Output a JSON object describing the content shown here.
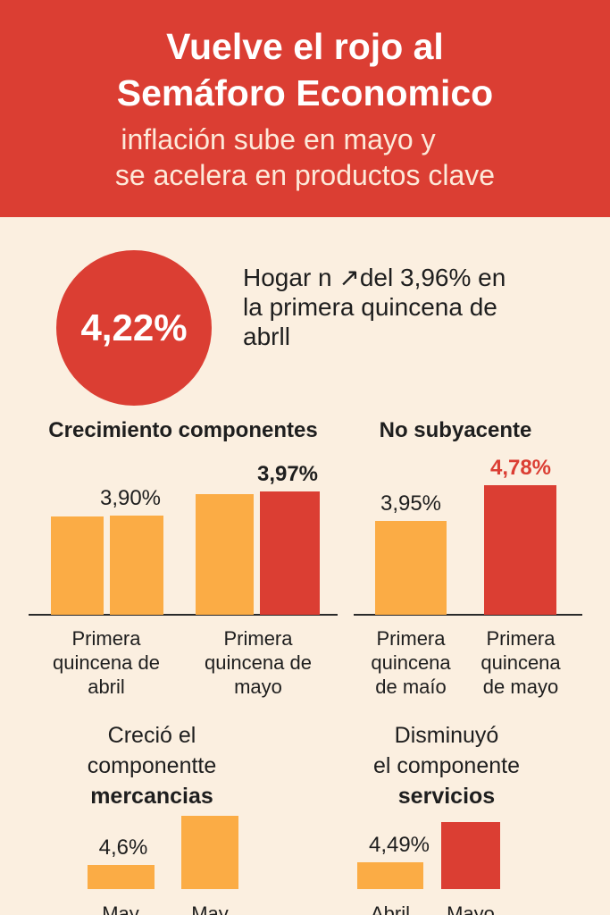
{
  "header": {
    "title_line1": "Vuelve el rojo al",
    "title_line2": "Semáforo Economico",
    "subtitle_line1": "inflación sube en mayo y",
    "subtitle_line2": "se acelera en productos clave"
  },
  "highlight": {
    "value": "4,22%",
    "text_line1": "Hogar n ↗del 3,96% en",
    "text_line2": "la primera quincena de",
    "text_line3": "abrll"
  },
  "colors": {
    "red": "#db3e33",
    "orange": "#fbac45",
    "background": "#fbefe0"
  },
  "sections": {
    "crecimiento": {
      "title": "Crecimiento componentes"
    },
    "no_subyacente": {
      "title": "No subyacente"
    },
    "mercancias": {
      "line1": "Creció el",
      "line2": "componentte",
      "line3": "mercancias"
    },
    "servicios": {
      "line1": "Disminuyó",
      "line2": "el componente",
      "line3": "servicios"
    }
  },
  "chart_data": [
    {
      "type": "bar",
      "title": "Crecimiento componentes",
      "categories": [
        "Primera quincena de abril",
        "Primera quincena de mayo"
      ],
      "bars": [
        {
          "category": 0,
          "value": 3.9,
          "color": "#fbac45"
        },
        {
          "category": 0,
          "value": 3.9,
          "color": "#fbac45"
        },
        {
          "category": 1,
          "value": 3.95,
          "color": "#fbac45"
        },
        {
          "category": 1,
          "value": 3.97,
          "color": "#db3e33"
        }
      ],
      "labels": [
        {
          "text": "3,90%",
          "category": 0,
          "value": 3.9,
          "bold": false,
          "color": "#1e1e1e"
        },
        {
          "text": "3,97%",
          "category": 1,
          "value": 3.97,
          "bold": true,
          "color": "#1e1e1e"
        }
      ]
    },
    {
      "type": "bar",
      "title": "No subyacente",
      "categories": [
        "Primera quincena de maío",
        "Primera quincena de mayo"
      ],
      "bars": [
        {
          "category": 0,
          "value": 3.95,
          "color": "#fbac45"
        },
        {
          "category": 1,
          "value": 4.78,
          "color": "#db3e33"
        }
      ],
      "labels": [
        {
          "text": "3,95%",
          "category": 0,
          "value": 3.95,
          "bold": false,
          "color": "#1e1e1e"
        },
        {
          "text": "4,78%",
          "category": 1,
          "value": 4.78,
          "bold": true,
          "color": "#db3e33"
        }
      ]
    },
    {
      "type": "bar",
      "title": "Creció el componentte mercancias",
      "categories": [
        "May",
        "May"
      ],
      "bars": [
        {
          "category": 0,
          "value": 4.6,
          "color": "#fbac45"
        },
        {
          "category": 1,
          "value": 5.4,
          "color": "#fbac45"
        }
      ],
      "labels": [
        {
          "text": "4,6%",
          "category": 0,
          "value": 4.6,
          "bold": false,
          "color": "#1e1e1e"
        }
      ]
    },
    {
      "type": "bar",
      "title": "Disminuyó el componente servicios",
      "categories": [
        "Abril",
        "Mayo"
      ],
      "bars": [
        {
          "category": 0,
          "value": 4.49,
          "color": "#fbac45"
        },
        {
          "category": 1,
          "value": 5.3,
          "color": "#db3e33"
        }
      ],
      "labels": [
        {
          "text": "4,49%",
          "category": 0,
          "value": 4.49,
          "bold": false,
          "color": "#1e1e1e"
        }
      ]
    }
  ]
}
